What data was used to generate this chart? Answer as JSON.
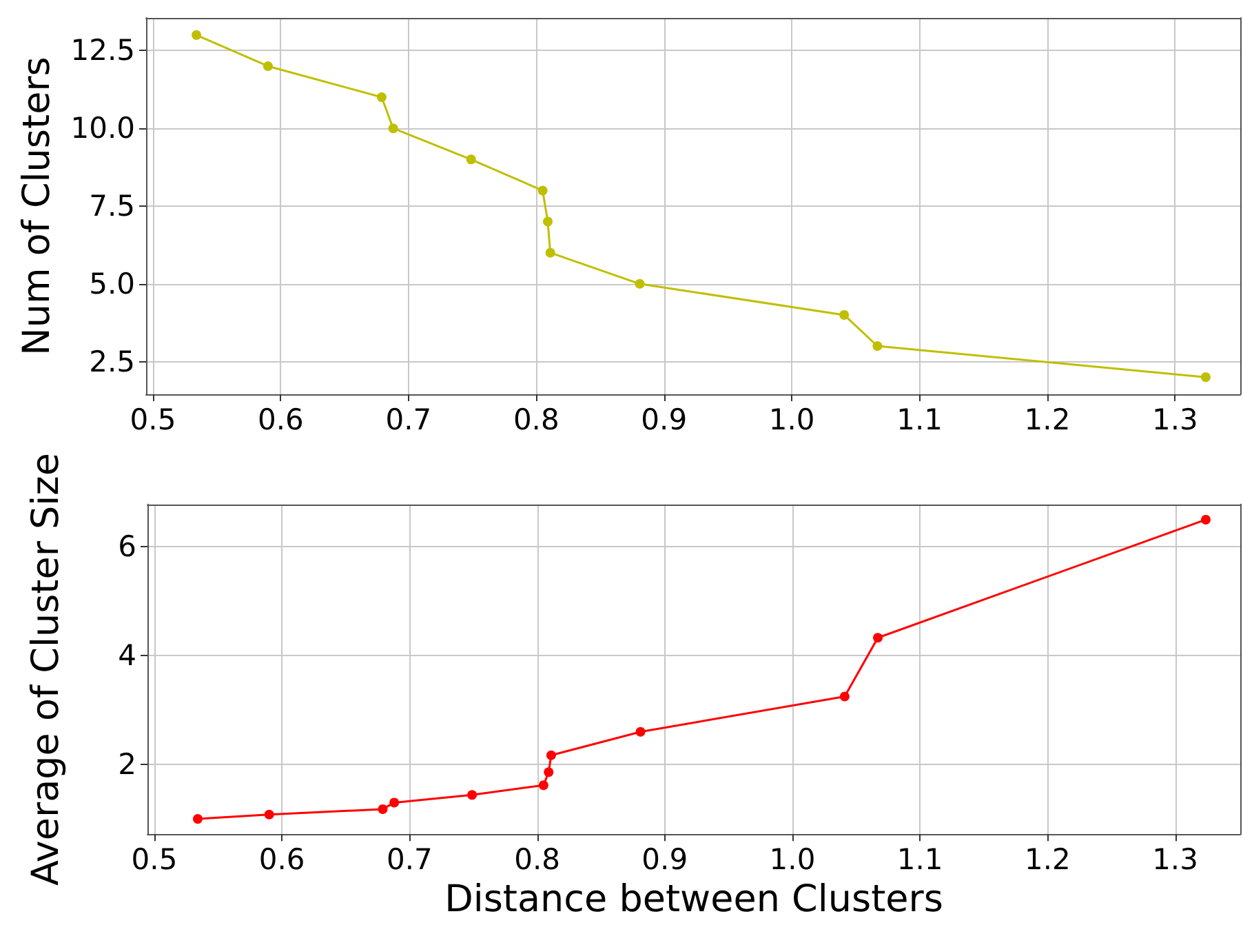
{
  "chart_data": [
    {
      "type": "line",
      "ylabel": "Num of Clusters",
      "x": [
        0.534,
        0.59,
        0.679,
        0.688,
        0.749,
        0.805,
        0.809,
        0.811,
        0.881,
        1.041,
        1.067,
        1.324
      ],
      "series": [
        {
          "color": "#bfbf00",
          "values": [
            13,
            12,
            11,
            10,
            9,
            8,
            7,
            6,
            5,
            4,
            3,
            2
          ]
        }
      ],
      "xlim": [
        0.4946,
        1.351
      ],
      "xticks": [
        0.5,
        0.6,
        0.7,
        0.8,
        0.9,
        {
          "value": 1,
          "label": "1.0"
        },
        1.1,
        1.2,
        1.3
      ],
      "ylim": [
        1.45,
        13.55
      ],
      "yticks": [
        2.5,
        {
          "value": 5,
          "label": "5.0"
        },
        7.5,
        {
          "value": 10,
          "label": "10.0"
        },
        12.5
      ],
      "grid": true,
      "marker": "circle",
      "line_style": "solid"
    },
    {
      "type": "line",
      "xlabel": "Distance between Clusters",
      "ylabel": "Average of Cluster Size",
      "x": [
        0.534,
        0.59,
        0.679,
        0.688,
        0.749,
        0.805,
        0.809,
        0.811,
        0.881,
        1.041,
        1.067,
        1.324
      ],
      "series": [
        {
          "color": "#ff0000",
          "values": [
            1.0,
            1.08,
            1.18,
            1.3,
            1.44,
            1.62,
            1.86,
            2.17,
            2.6,
            3.25,
            4.33,
            6.5
          ]
        }
      ],
      "xlim": [
        0.4946,
        1.351
      ],
      "xticks": [
        0.5,
        0.6,
        0.7,
        0.8,
        0.9,
        {
          "value": 1,
          "label": "1.0"
        },
        1.1,
        1.2,
        1.3
      ],
      "ylim": [
        0.72,
        6.78
      ],
      "yticks": [
        2,
        4,
        6
      ],
      "grid": true,
      "marker": "circle",
      "line_style": "solid"
    }
  ]
}
